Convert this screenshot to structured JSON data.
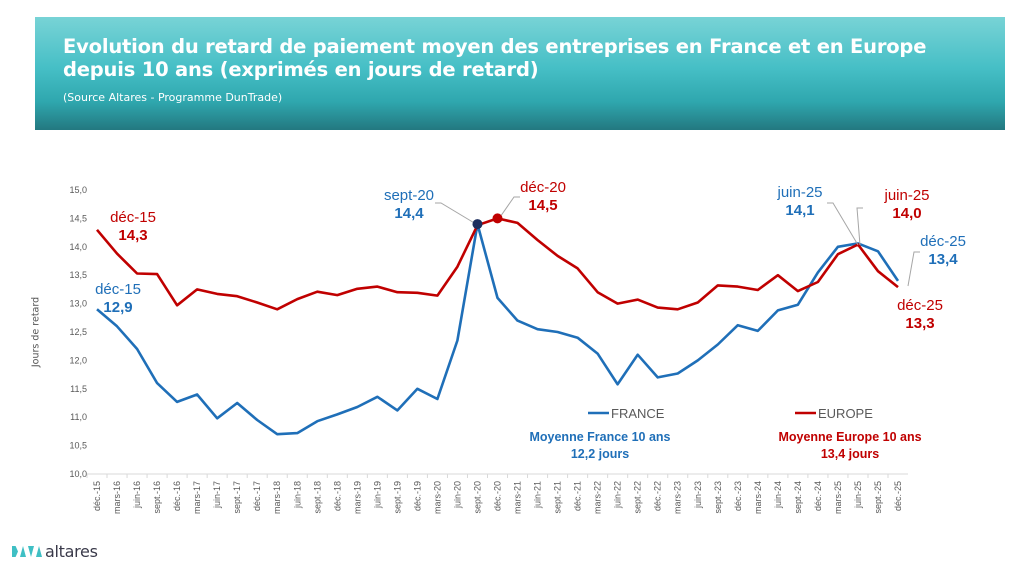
{
  "header": {
    "title_line1": "Evolution du retard de paiement moyen des entreprises en France et en Europe",
    "title_line2": "depuis 10 ans (exprimés en jours de retard)",
    "source": "(Source Altares - Programme DunTrade)"
  },
  "logo": {
    "text": "altares"
  },
  "colors": {
    "france": "#1f6fb8",
    "europe": "#c00000",
    "banner_top": "#78d3d6",
    "banner_bottom": "#237880",
    "marker_france": "#1d2f5e"
  },
  "chart_data": {
    "type": "line",
    "title": "Evolution du retard de paiement moyen des entreprises en France et en Europe depuis 10 ans (exprimés en jours de retard)",
    "xlabel": "",
    "ylabel": "Jours de retard",
    "ylim": [
      10.0,
      15.0
    ],
    "yticks": [
      "10,0",
      "10,5",
      "11,0",
      "11,5",
      "12,0",
      "12,5",
      "13,0",
      "13,5",
      "14,0",
      "14,5",
      "15,0"
    ],
    "ytick_values": [
      10.0,
      10.5,
      11.0,
      11.5,
      12.0,
      12.5,
      13.0,
      13.5,
      14.0,
      14.5,
      15.0
    ],
    "grid": false,
    "legend_position": "bottom-center",
    "categories": [
      "déc.-15",
      "mars-16",
      "juin-16",
      "sept.-16",
      "déc.-16",
      "mars-17",
      "juin-17",
      "sept.-17",
      "déc.-17",
      "mars-18",
      "juin-18",
      "sept.-18",
      "déc.-18",
      "mars-19",
      "juin-19",
      "sept.-19",
      "déc.-19",
      "mars-20",
      "juin-20",
      "sept.-20",
      "déc.-20",
      "mars-21",
      "juin-21",
      "sept.-21",
      "déc.-21",
      "mars-22",
      "juin-22",
      "sept.-22",
      "déc.-22",
      "mars-23",
      "juin-23",
      "sept.-23",
      "déc.-23",
      "mars-24",
      "juin-24",
      "sept.-24",
      "déc.-24",
      "mars-25",
      "juin-25",
      "sept.-25",
      "déc.-25"
    ],
    "series": [
      {
        "name": "FRANCE",
        "color": "#1f6fb8",
        "values": [
          12.9,
          12.6,
          12.2,
          11.6,
          11.27,
          11.4,
          10.98,
          11.25,
          10.95,
          10.7,
          10.72,
          10.93,
          11.05,
          11.18,
          11.36,
          11.12,
          11.5,
          11.32,
          12.35,
          14.4,
          13.1,
          12.7,
          12.55,
          12.5,
          12.4,
          12.12,
          11.58,
          12.1,
          11.7,
          11.77,
          12.0,
          12.28,
          12.62,
          12.52,
          12.88,
          12.98,
          13.55,
          14.0,
          14.06,
          13.92,
          13.4
        ]
      },
      {
        "name": "EUROPE",
        "color": "#c00000",
        "values": [
          14.3,
          13.88,
          13.53,
          13.52,
          12.97,
          13.25,
          13.17,
          13.13,
          13.02,
          12.9,
          13.08,
          13.21,
          13.15,
          13.26,
          13.3,
          13.2,
          13.19,
          13.14,
          13.65,
          14.38,
          14.5,
          14.42,
          14.12,
          13.84,
          13.62,
          13.2,
          13.0,
          13.07,
          12.93,
          12.9,
          13.02,
          13.32,
          13.3,
          13.24,
          13.5,
          13.22,
          13.38,
          13.87,
          14.04,
          13.57,
          13.29
        ]
      }
    ],
    "annotations": [
      {
        "series": "FRANCE",
        "index": 0,
        "label": "déc-15",
        "value": "12,9",
        "marker": false
      },
      {
        "series": "EUROPE",
        "index": 0,
        "label": "déc-15",
        "value": "14,3",
        "marker": false
      },
      {
        "series": "FRANCE",
        "index": 19,
        "label": "sept-20",
        "value": "14,4",
        "marker": true
      },
      {
        "series": "EUROPE",
        "index": 20,
        "label": "déc-20",
        "value": "14,5",
        "marker": true
      },
      {
        "series": "FRANCE",
        "index": 38,
        "label": "juin-25",
        "value": "14,1",
        "marker": false
      },
      {
        "series": "EUROPE",
        "index": 38,
        "label": "juin-25",
        "value": "14,0",
        "marker": false
      },
      {
        "series": "FRANCE",
        "index": 40,
        "label": "déc-25",
        "value": "13,4",
        "marker": false
      },
      {
        "series": "EUROPE",
        "index": 40,
        "label": "déc-25",
        "value": "13,3",
        "marker": false
      }
    ],
    "averages": [
      {
        "series": "FRANCE",
        "line1": "Moyenne France  10 ans",
        "line2": "12,2  jours"
      },
      {
        "series": "EUROPE",
        "line1": "Moyenne Europe 10 ans",
        "line2": "13,4 jours"
      }
    ]
  }
}
